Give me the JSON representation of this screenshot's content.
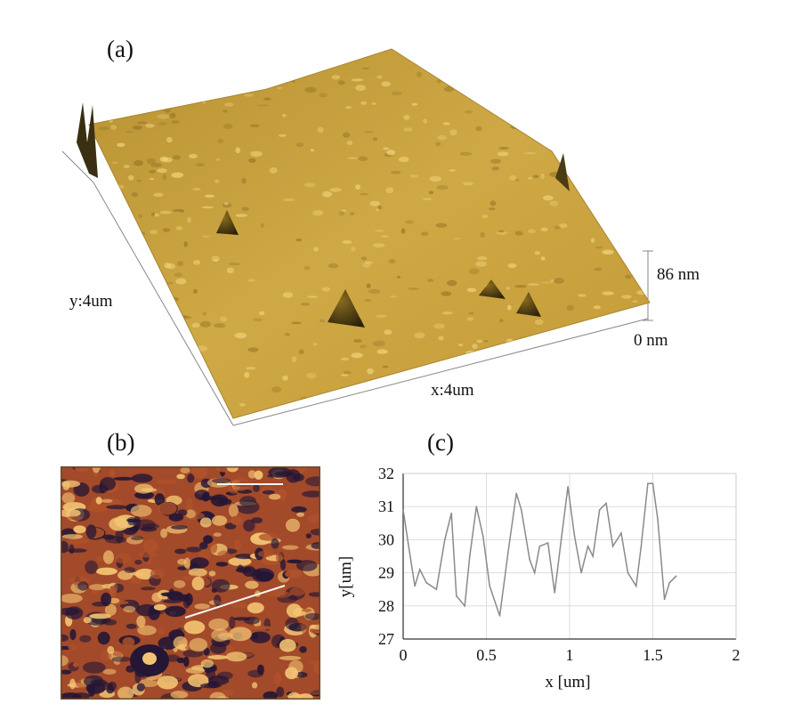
{
  "figure": {
    "panel_a": {
      "label": "(a)",
      "x_axis_label": "x:4um",
      "y_axis_label": "y:4um",
      "z_top_label": "86 nm",
      "z_bottom_label": "0 nm",
      "surface_color": "#c9a43c"
    },
    "panel_b": {
      "label": "(b)",
      "colors": {
        "dark": "#241635",
        "mid": "#b0522a",
        "light": "#f2c372"
      }
    },
    "panel_c": {
      "label": "(c)"
    }
  },
  "chart_data": {
    "type": "line",
    "title": "",
    "xlabel": "x [um]",
    "ylabel": "y[um]",
    "xlim": [
      0,
      2
    ],
    "ylim": [
      27,
      32
    ],
    "xticks": [
      0,
      0.5,
      1,
      1.5,
      2
    ],
    "xtick_labels": [
      "0",
      "0.5",
      "1",
      "1.5",
      "2"
    ],
    "yticks": [
      27,
      28,
      29,
      30,
      31,
      32
    ],
    "ytick_labels": [
      "27",
      "28",
      "29",
      "30",
      "31",
      "32"
    ],
    "grid": true,
    "series": [
      {
        "x": [
          0,
          0.03,
          0.07,
          0.1,
          0.14,
          0.2,
          0.25,
          0.29,
          0.32,
          0.37,
          0.4,
          0.44,
          0.48,
          0.52,
          0.58,
          0.63,
          0.68,
          0.71,
          0.76,
          0.79,
          0.82,
          0.87,
          0.91,
          0.95,
          0.99,
          1.03,
          1.07,
          1.11,
          1.14,
          1.18,
          1.22,
          1.26,
          1.31,
          1.35,
          1.4,
          1.43,
          1.47,
          1.5,
          1.53,
          1.57,
          1.6,
          1.64
        ],
        "values": [
          30.9,
          29.9,
          28.6,
          29.1,
          28.7,
          28.5,
          30.0,
          30.8,
          28.3,
          28.0,
          29.5,
          31.0,
          30.1,
          28.6,
          27.7,
          29.6,
          31.4,
          30.9,
          29.4,
          29.0,
          29.8,
          29.9,
          28.4,
          30.0,
          31.6,
          30.1,
          29.0,
          29.8,
          29.5,
          30.9,
          31.1,
          29.8,
          30.2,
          29.0,
          28.6,
          29.8,
          31.7,
          31.7,
          30.6,
          28.2,
          28.7,
          28.9
        ]
      }
    ]
  }
}
